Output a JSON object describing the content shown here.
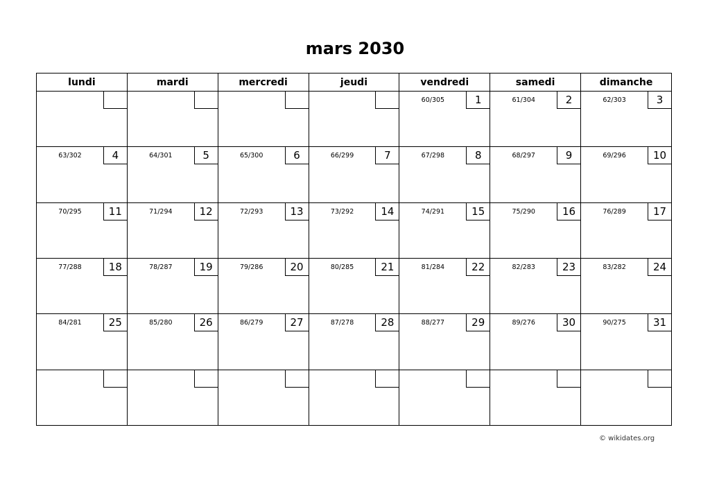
{
  "title": "mars 2030",
  "weekdays": [
    "lundi",
    "mardi",
    "mercredi",
    "jeudi",
    "vendredi",
    "samedi",
    "dimanche"
  ],
  "weeks": [
    [
      null,
      null,
      null,
      null,
      {
        "day": "1",
        "doy": "60/305"
      },
      {
        "day": "2",
        "doy": "61/304"
      },
      {
        "day": "3",
        "doy": "62/303"
      }
    ],
    [
      {
        "day": "4",
        "doy": "63/302"
      },
      {
        "day": "5",
        "doy": "64/301"
      },
      {
        "day": "6",
        "doy": "65/300"
      },
      {
        "day": "7",
        "doy": "66/299"
      },
      {
        "day": "8",
        "doy": "67/298"
      },
      {
        "day": "9",
        "doy": "68/297"
      },
      {
        "day": "10",
        "doy": "69/296"
      }
    ],
    [
      {
        "day": "11",
        "doy": "70/295"
      },
      {
        "day": "12",
        "doy": "71/294"
      },
      {
        "day": "13",
        "doy": "72/293"
      },
      {
        "day": "14",
        "doy": "73/292"
      },
      {
        "day": "15",
        "doy": "74/291"
      },
      {
        "day": "16",
        "doy": "75/290"
      },
      {
        "day": "17",
        "doy": "76/289"
      }
    ],
    [
      {
        "day": "18",
        "doy": "77/288"
      },
      {
        "day": "19",
        "doy": "78/287"
      },
      {
        "day": "20",
        "doy": "79/286"
      },
      {
        "day": "21",
        "doy": "80/285"
      },
      {
        "day": "22",
        "doy": "81/284"
      },
      {
        "day": "23",
        "doy": "82/283"
      },
      {
        "day": "24",
        "doy": "83/282"
      }
    ],
    [
      {
        "day": "25",
        "doy": "84/281"
      },
      {
        "day": "26",
        "doy": "85/280"
      },
      {
        "day": "27",
        "doy": "86/279"
      },
      {
        "day": "28",
        "doy": "87/278"
      },
      {
        "day": "29",
        "doy": "88/277"
      },
      {
        "day": "30",
        "doy": "89/276"
      },
      {
        "day": "31",
        "doy": "90/275"
      }
    ],
    [
      null,
      null,
      null,
      null,
      null,
      null,
      null
    ]
  ],
  "footer": "© wikidates.org"
}
